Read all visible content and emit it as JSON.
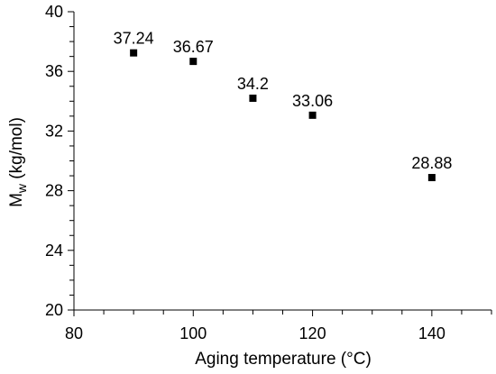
{
  "chart_data": {
    "type": "scatter",
    "title": "",
    "xlabel": "Aging temperature (°C)",
    "ylabel": {
      "main": "M",
      "sub": "w",
      "rest": " (kg/mol)"
    },
    "xlim": [
      80,
      150
    ],
    "ylim": [
      20,
      40
    ],
    "xticks": [
      80,
      100,
      120,
      140
    ],
    "yticks": [
      20,
      24,
      28,
      32,
      36,
      40
    ],
    "x_minor_step": 5,
    "y_minor_step": 1,
    "grid": false,
    "legend": "none",
    "marker": "square",
    "marker_color": "#000000",
    "points": [
      {
        "x": 90,
        "y": 37.24,
        "label": "37.24"
      },
      {
        "x": 100,
        "y": 36.67,
        "label": "36.67"
      },
      {
        "x": 110,
        "y": 34.2,
        "label": "34.2"
      },
      {
        "x": 120,
        "y": 33.06,
        "label": "33.06"
      },
      {
        "x": 140,
        "y": 28.88,
        "label": "28.88"
      }
    ]
  }
}
